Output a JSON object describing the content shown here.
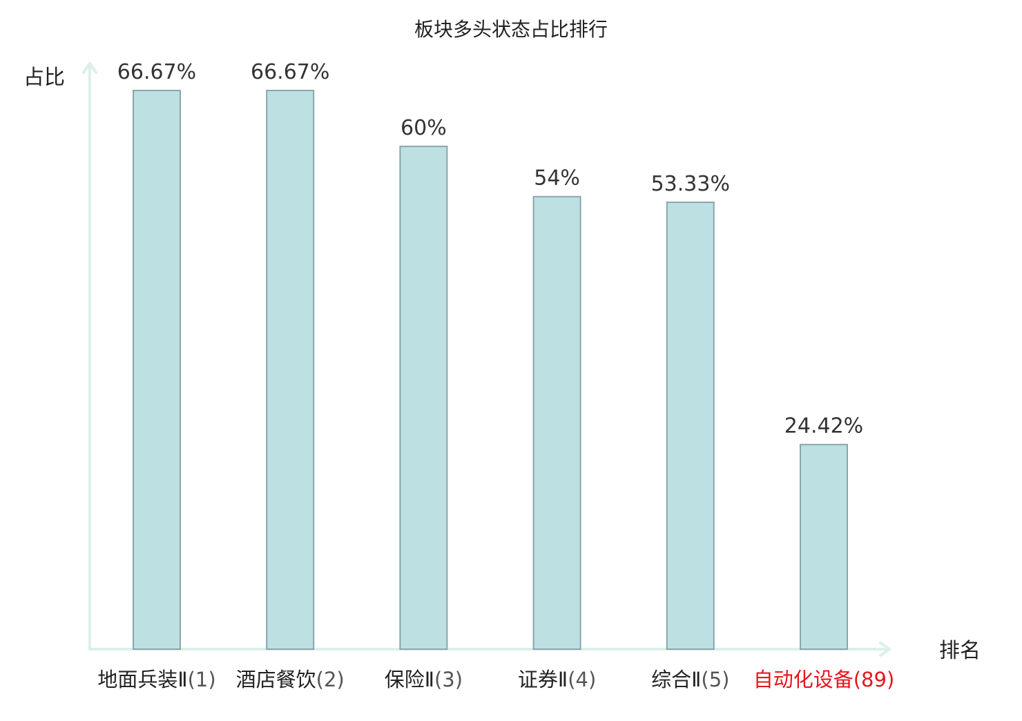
{
  "chart_data": {
    "type": "bar",
    "title": "板块多头状态占比排行",
    "ylabel": "占比",
    "xlabel": "排名",
    "ylim": [
      0,
      70
    ],
    "grid": false,
    "categories": [
      {
        "name": "地面兵装Ⅱ",
        "rank": "(1)",
        "highlight": false
      },
      {
        "name": "酒店餐饮",
        "rank": "(2)",
        "highlight": false
      },
      {
        "name": "保险Ⅱ",
        "rank": "(3)",
        "highlight": false
      },
      {
        "name": "证券Ⅱ",
        "rank": "(4)",
        "highlight": false
      },
      {
        "name": "综合Ⅱ",
        "rank": "(5)",
        "highlight": false
      },
      {
        "name": "自动化设备",
        "rank": "(89)",
        "highlight": true
      }
    ],
    "values": [
      66.67,
      66.67,
      60,
      54,
      53.33,
      24.42
    ],
    "value_labels": [
      "66.67%",
      "66.67%",
      "60%",
      "54%",
      "53.33%",
      "24.42%"
    ],
    "colors": {
      "bar_fill": "#bde0e3",
      "bar_stroke": "#8aa6a8",
      "axis": "#dcefeb",
      "label_default": "#222222",
      "label_highlight": "#e8141c"
    }
  }
}
